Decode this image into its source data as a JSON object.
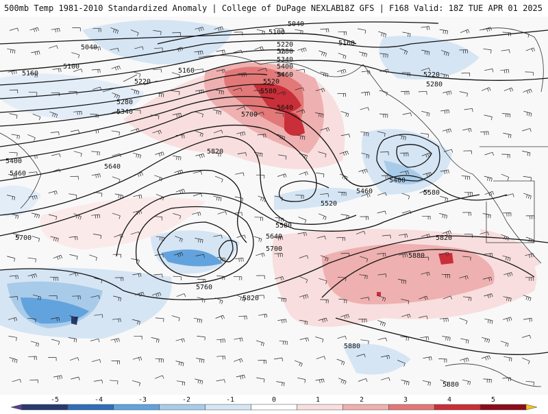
{
  "header": {
    "left_title": "500mb Temp 1981-2010 Standardized Anomaly | College of DuPage NEXLAB",
    "right_title": "18Z GFS | F168 Valid: 18Z TUE APR 01 2025"
  },
  "contours": [
    {
      "label": "5040"
    },
    {
      "label": "5040"
    },
    {
      "label": "5100"
    },
    {
      "label": "5100"
    },
    {
      "label": "5160"
    },
    {
      "label": "5160"
    },
    {
      "label": "5160"
    },
    {
      "label": "5220"
    },
    {
      "label": "5220"
    },
    {
      "label": "5220"
    },
    {
      "label": "5280"
    },
    {
      "label": "5280"
    },
    {
      "label": "5280"
    },
    {
      "label": "5340"
    },
    {
      "label": "5340"
    },
    {
      "label": "5400"
    },
    {
      "label": "5400"
    },
    {
      "label": "5400"
    },
    {
      "label": "5460"
    },
    {
      "label": "5460"
    },
    {
      "label": "5460"
    },
    {
      "label": "5520"
    },
    {
      "label": "5520"
    },
    {
      "label": "5580"
    },
    {
      "label": "5580"
    },
    {
      "label": "5580"
    },
    {
      "label": "5640"
    },
    {
      "label": "5640"
    },
    {
      "label": "5640"
    },
    {
      "label": "5700"
    },
    {
      "label": "5700"
    },
    {
      "label": "5700"
    },
    {
      "label": "5760"
    },
    {
      "label": "5820"
    },
    {
      "label": "5820"
    },
    {
      "label": "5820"
    },
    {
      "label": "5880"
    },
    {
      "label": "5880"
    },
    {
      "label": "5880"
    }
  ],
  "colorbar": {
    "ticks": [
      "-5",
      "-4",
      "-3",
      "-2",
      "-1",
      "0",
      "1",
      "2",
      "3",
      "4",
      "5"
    ],
    "colors": [
      "#5a3d96",
      "#273a6e",
      "#2f6fb7",
      "#62a3dd",
      "#a8cbe9",
      "#d5e5f4",
      "#ffffff",
      "#f8dede",
      "#eeb0b0",
      "#e27878",
      "#c92f38",
      "#8c0c1a",
      "#f3c21a"
    ]
  }
}
